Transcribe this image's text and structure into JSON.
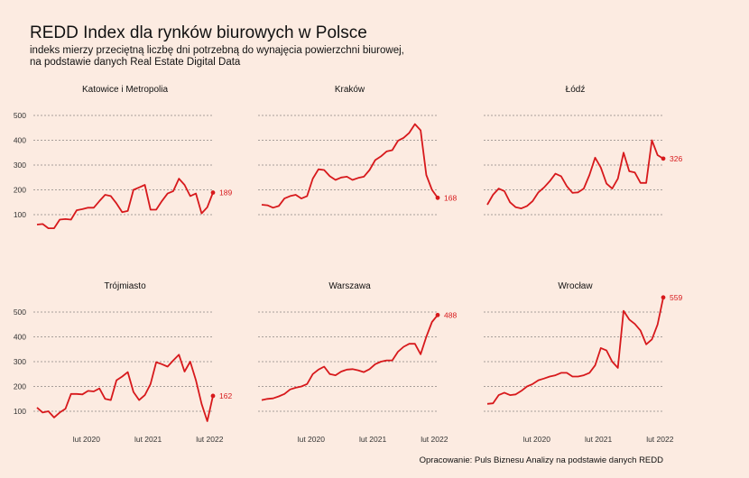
{
  "title": "REDD Index dla rynków biurowych w Polsce",
  "subtitle_lines": [
    "indeks mierzy przeciętną liczbę dni potrzebną do wynajęcia powierzchni biurowej,",
    "na podstawie danych Real Estate Digital Data"
  ],
  "caption": "Opracowanie: Puls Biznesu Analizy na podstawie danych REDD",
  "colors": {
    "line": "#d7191c",
    "background": "#fcebe1",
    "grid": "#555555"
  },
  "chart_data": {
    "type": "line",
    "facets": 6,
    "y_ticks": [
      100,
      200,
      300,
      400,
      500
    ],
    "ylim": [
      40,
      520
    ],
    "x_ticks": [
      "lut 2020",
      "lut 2021",
      "lut 2022"
    ],
    "x_tick_positions": [
      11,
      23,
      35
    ],
    "x_range": [
      1,
      36
    ],
    "grid": "horizontal dashed",
    "series": [
      {
        "name": "Katowice i Metropolia",
        "last_label": "189",
        "values": [
          60,
          62,
          45,
          45,
          80,
          82,
          80,
          118,
          122,
          128,
          128,
          155,
          180,
          175,
          145,
          110,
          115,
          200,
          210,
          220,
          120,
          120,
          155,
          185,
          195,
          245,
          220,
          175,
          185,
          105,
          130,
          189
        ]
      },
      {
        "name": "Kraków",
        "last_label": "168",
        "values": [
          140,
          138,
          128,
          135,
          165,
          175,
          180,
          165,
          175,
          245,
          283,
          280,
          255,
          240,
          250,
          253,
          240,
          248,
          253,
          280,
          320,
          335,
          355,
          360,
          398,
          410,
          430,
          465,
          440,
          260,
          200,
          168
        ]
      },
      {
        "name": "Łódź",
        "last_label": "326",
        "values": [
          140,
          180,
          205,
          195,
          150,
          130,
          125,
          135,
          155,
          190,
          210,
          235,
          265,
          255,
          215,
          188,
          190,
          205,
          260,
          330,
          290,
          225,
          205,
          245,
          350,
          275,
          270,
          228,
          228,
          400,
          340,
          326
        ]
      },
      {
        "name": "Trójmiasto",
        "last_label": "162",
        "values": [
          115,
          95,
          100,
          75,
          95,
          110,
          170,
          170,
          168,
          182,
          180,
          192,
          150,
          145,
          225,
          240,
          258,
          178,
          145,
          165,
          210,
          298,
          290,
          280,
          305,
          328,
          260,
          300,
          225,
          130,
          60,
          162
        ]
      },
      {
        "name": "Warszawa",
        "last_label": "488",
        "values": [
          145,
          150,
          152,
          160,
          170,
          188,
          195,
          200,
          210,
          250,
          268,
          280,
          250,
          245,
          260,
          268,
          270,
          265,
          258,
          270,
          290,
          300,
          305,
          305,
          340,
          360,
          372,
          372,
          330,
          400,
          460,
          488
        ]
      },
      {
        "name": "Wrocław",
        "last_label": "559",
        "values": [
          130,
          132,
          165,
          175,
          165,
          168,
          182,
          200,
          210,
          225,
          232,
          240,
          245,
          255,
          255,
          240,
          240,
          245,
          255,
          285,
          355,
          345,
          300,
          275,
          505,
          470,
          452,
          425,
          370,
          390,
          450,
          559
        ]
      }
    ]
  }
}
